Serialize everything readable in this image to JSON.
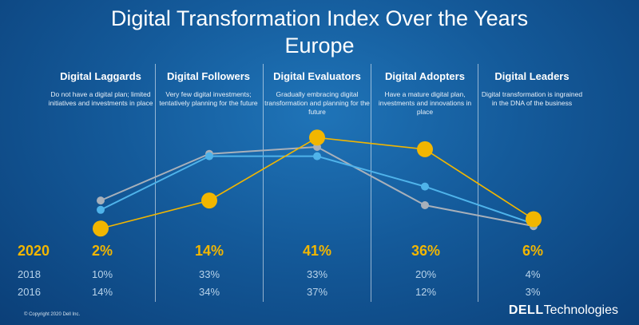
{
  "title_line1": "Digital Transformation Index Over the Years",
  "title_line2": "Europe",
  "chart_data": {
    "type": "line",
    "categories": [
      "Digital Laggards",
      "Digital Followers",
      "Digital Evaluators",
      "Digital Adopters",
      "Digital Leaders"
    ],
    "descriptions": [
      "Do not have a digital plan; limited initiatives and investments in place",
      "Very few digital investments; tentatively planning for the future",
      "Gradually embracing digital transformation and planning for the future",
      "Have a mature digital plan, investments and innovations in place",
      "Digital transformation is ingrained in the DNA of the business"
    ],
    "series": [
      {
        "name": "2020",
        "values": [
          2,
          14,
          41,
          36,
          6
        ],
        "labels": [
          "2%",
          "14%",
          "41%",
          "36%",
          "6%"
        ],
        "color": "#f2b600"
      },
      {
        "name": "2018",
        "values": [
          10,
          33,
          33,
          20,
          4
        ],
        "labels": [
          "10%",
          "33%",
          "33%",
          "20%",
          "4%"
        ],
        "color": "#4fb3ea"
      },
      {
        "name": "2016",
        "values": [
          14,
          34,
          37,
          12,
          3
        ],
        "labels": [
          "14%",
          "34%",
          "37%",
          "12%",
          "3%"
        ],
        "color": "#a8b0ba"
      }
    ],
    "ylim": [
      0,
      45
    ]
  },
  "copyright": "© Copyright 2020 Dell Inc.",
  "logo": {
    "brand": "DELL",
    "suffix": "Technologies"
  }
}
